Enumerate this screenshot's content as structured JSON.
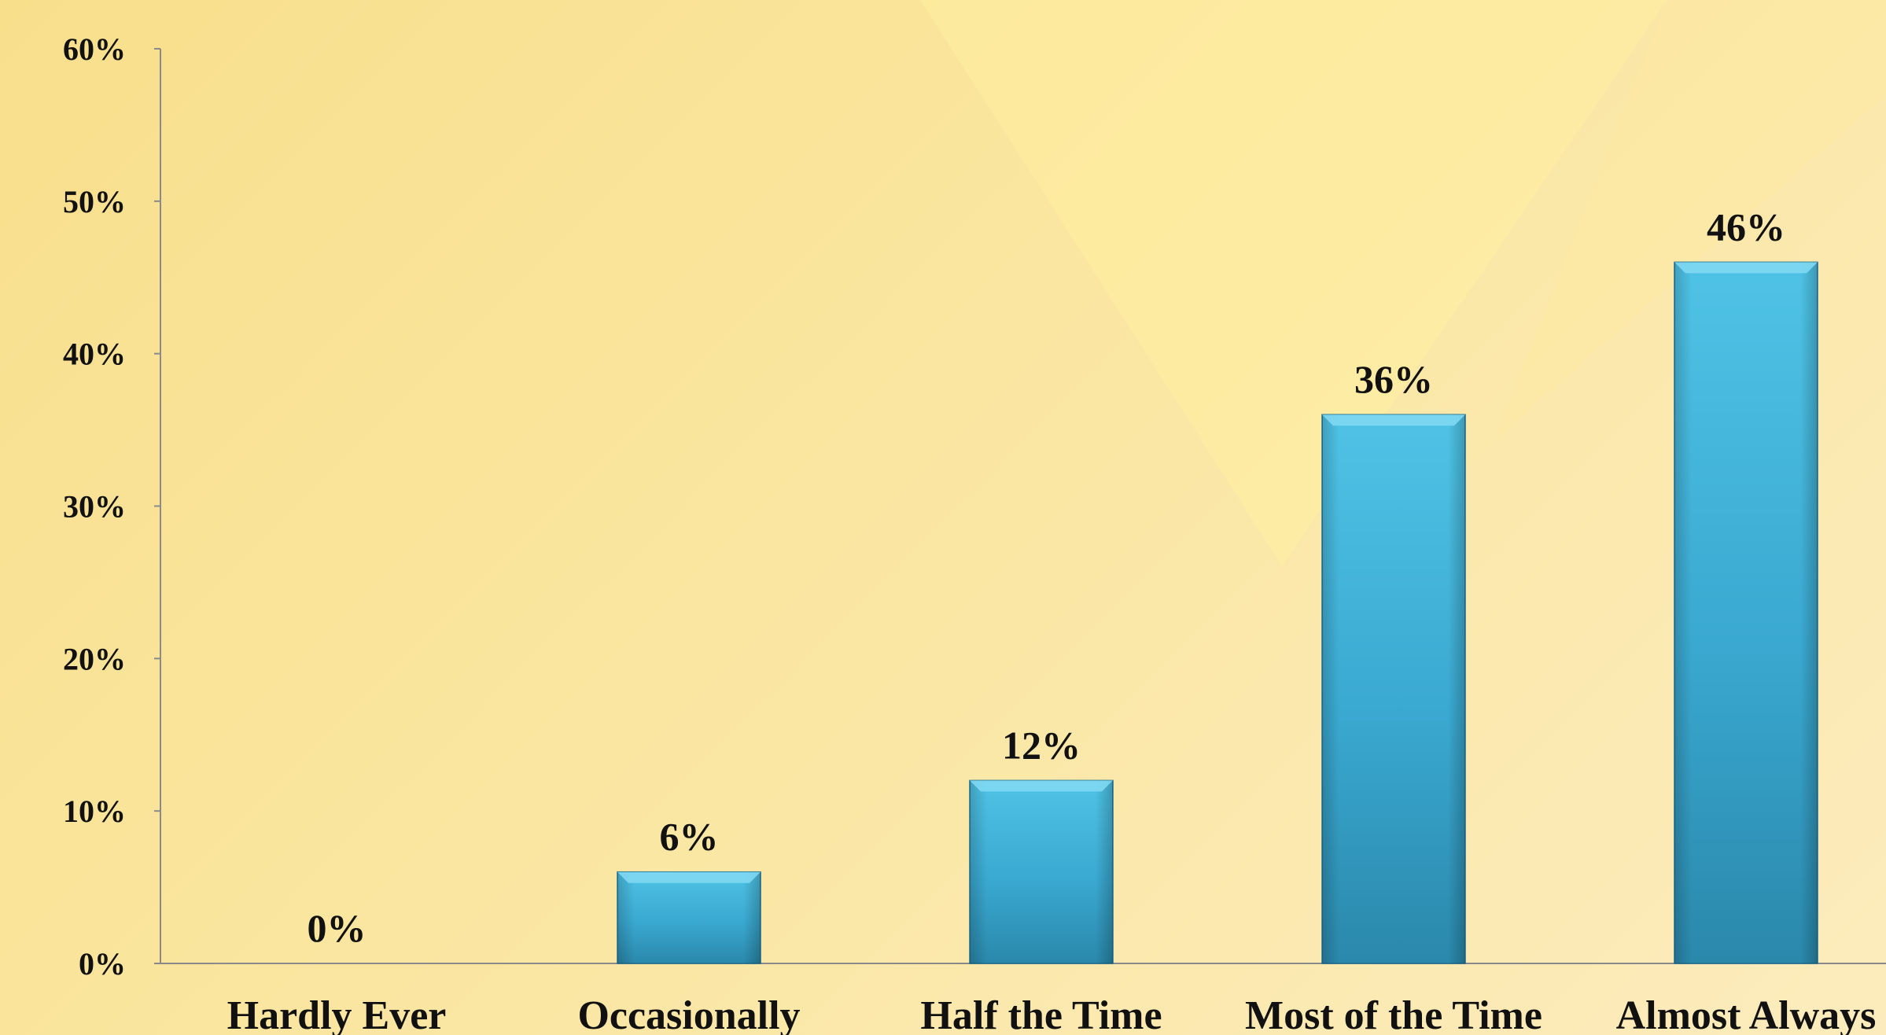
{
  "chart_data": {
    "type": "bar",
    "categories": [
      "Hardly Ever",
      "Occasionally",
      "Half the Time",
      "Most of the Time",
      "Almost Always"
    ],
    "values": [
      0,
      6,
      12,
      36,
      46
    ],
    "data_labels": [
      "0%",
      "6%",
      "12%",
      "36%",
      "46%"
    ],
    "y_ticks": [
      0,
      10,
      20,
      30,
      40,
      50,
      60
    ],
    "y_tick_labels": [
      "0%",
      "10%",
      "20%",
      "30%",
      "40%",
      "50%",
      "60%"
    ],
    "ylim": [
      0,
      60
    ],
    "title": "",
    "xlabel": "",
    "ylabel": "",
    "grid": false,
    "legend": "none",
    "colors": {
      "bar_top": "#4fc3e6",
      "bar_mid": "#3aa8d0",
      "bar_bottom": "#2a88ab",
      "bar_edge": "#1f6f8e",
      "axis": "#8a8a8a",
      "text": "#111111",
      "background_light": "#fdecb8",
      "background_dark": "#f6dc88"
    }
  }
}
